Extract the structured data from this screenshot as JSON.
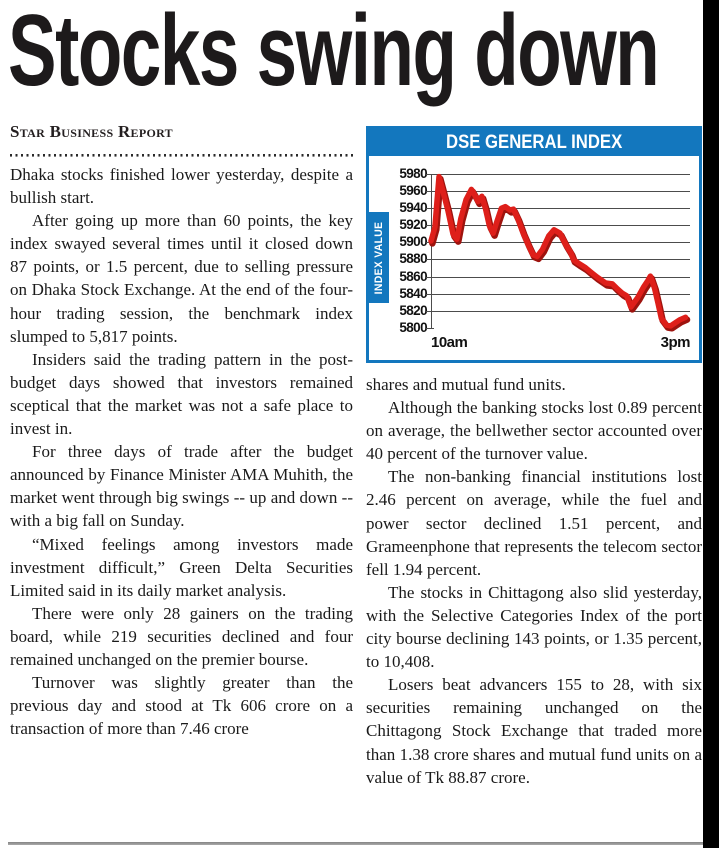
{
  "article": {
    "headline": "Stocks swing down",
    "byline": "Star Business Report",
    "left_paragraphs": [
      "Dhaka stocks finished lower yesterday, despite a bullish start.",
      "After going up more than 60 points, the key index swayed several times until it closed down 87 points, or 1.5 percent, due to selling pressure on Dhaka Stock Exchange. At the end of the four-hour trading session, the benchmark index slumped to 5,817 points.",
      "Insiders said the trading pattern in the post-budget days showed that investors remained sceptical that the market was not a safe place to invest in.",
      "For three days of trade after the budget announced by Finance Minister AMA Muhith, the market went through big swings -- up and down -- with a big fall on Sunday.",
      "“Mixed feelings among investors made investment difficult,” Green Delta Securities Limited said in its daily market analysis.",
      "There were only 28 gainers on the trading board, while 219 securities declined and four remained unchanged on the premier bourse.",
      "Turnover was slightly greater than the previous day and stood at Tk 606 crore on a transaction of more than 7.46 crore"
    ],
    "right_paragraphs": [
      "shares and mutual fund units.",
      "Although the banking stocks lost 0.89 percent on average, the bellwether sector accounted over 40 percent of the turnover value.",
      "The non-banking financial institutions lost 2.46 percent on average, while the fuel and power sector declined 1.51 percent, and Grameenphone that represents the telecom sector fell 1.94 percent.",
      "The stocks in Chittagong also slid yesterday, with the Selective Categories Index of the port city bourse declining 143 points, or 1.35 percent, to 10,408.",
      "Losers beat advancers 155 to 28, with six securities remaining unchanged on the Chittagong Stock Exchange that traded more than 1.38 crore shares and mutual fund units on a value of Tk 88.87 crore."
    ]
  },
  "chart": {
    "title": "DSE GENERAL INDEX",
    "y_axis_label": "INDEX VALUE",
    "x_start_label": "10am",
    "x_end_label": "3pm",
    "y_ticks": [
      "5980",
      "5960",
      "5940",
      "5920",
      "5900",
      "5880",
      "5860",
      "5840",
      "5820",
      "5800"
    ],
    "colors": {
      "frame_blue": "#1377be",
      "line_red": "#de1f1a",
      "line_shadow_red": "#9e130e",
      "grid_gray": "#4c4c4c"
    }
  },
  "chart_data": {
    "type": "line",
    "title": "DSE GENERAL INDEX",
    "ylabel": "INDEX VALUE",
    "xlabel_ticks": [
      "10am",
      "3pm"
    ],
    "ylim": [
      5800,
      5980
    ],
    "ytick_step": 20,
    "grid": true,
    "legend": "none",
    "series": [
      {
        "name": "DSE General Index",
        "x_is_fraction_of_session_10am_to_3pm": true,
        "points": [
          [
            0.0,
            5902
          ],
          [
            0.015,
            5918
          ],
          [
            0.031,
            5977
          ],
          [
            0.045,
            5961
          ],
          [
            0.065,
            5938
          ],
          [
            0.085,
            5910
          ],
          [
            0.1,
            5904
          ],
          [
            0.115,
            5928
          ],
          [
            0.135,
            5950
          ],
          [
            0.156,
            5962
          ],
          [
            0.17,
            5955
          ],
          [
            0.182,
            5948
          ],
          [
            0.196,
            5954
          ],
          [
            0.21,
            5940
          ],
          [
            0.225,
            5920
          ],
          [
            0.24,
            5911
          ],
          [
            0.255,
            5925
          ],
          [
            0.272,
            5940
          ],
          [
            0.287,
            5942
          ],
          [
            0.305,
            5938
          ],
          [
            0.318,
            5939
          ],
          [
            0.335,
            5928
          ],
          [
            0.355,
            5912
          ],
          [
            0.375,
            5898
          ],
          [
            0.394,
            5886
          ],
          [
            0.41,
            5884
          ],
          [
            0.43,
            5892
          ],
          [
            0.455,
            5908
          ],
          [
            0.475,
            5915
          ],
          [
            0.498,
            5911
          ],
          [
            0.52,
            5898
          ],
          [
            0.54,
            5888
          ],
          [
            0.55,
            5880
          ],
          [
            0.57,
            5876
          ],
          [
            0.596,
            5871
          ],
          [
            0.62,
            5865
          ],
          [
            0.641,
            5860
          ],
          [
            0.66,
            5856
          ],
          [
            0.674,
            5853
          ],
          [
            0.7,
            5852
          ],
          [
            0.72,
            5846
          ],
          [
            0.739,
            5841
          ],
          [
            0.756,
            5838
          ],
          [
            0.772,
            5825
          ],
          [
            0.798,
            5836
          ],
          [
            0.82,
            5848
          ],
          [
            0.838,
            5856
          ],
          [
            0.847,
            5861
          ],
          [
            0.862,
            5848
          ],
          [
            0.876,
            5830
          ],
          [
            0.889,
            5812
          ],
          [
            0.909,
            5804
          ],
          [
            0.925,
            5803
          ],
          [
            0.94,
            5806
          ],
          [
            0.96,
            5810
          ],
          [
            0.983,
            5813
          ]
        ]
      }
    ]
  }
}
